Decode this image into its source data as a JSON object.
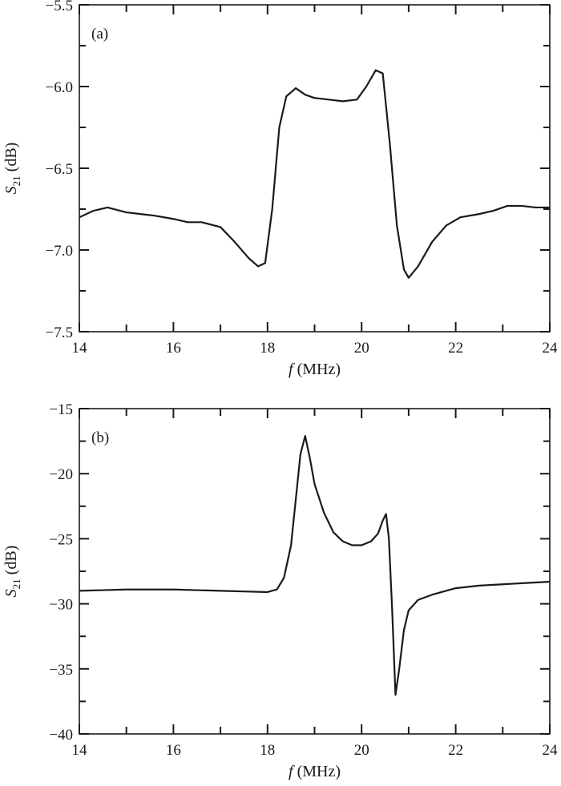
{
  "chart_data": [
    {
      "type": "line",
      "panel_label": "(a)",
      "xlabel_var": "f",
      "xlabel_unit": " (MHz)",
      "ylabel_var": "S",
      "ylabel_sub": "21",
      "ylabel_unit": " (dB)",
      "xlim": [
        14,
        24
      ],
      "ylim": [
        -7.5,
        -5.5
      ],
      "x_ticks": [
        14,
        16,
        18,
        20,
        22,
        24
      ],
      "x_tick_labels": [
        "14",
        "16",
        "18",
        "20",
        "22",
        "24"
      ],
      "y_ticks": [
        -7.5,
        -7.0,
        -6.5,
        -6.0,
        -5.5
      ],
      "y_tick_labels": [
        "−7.5",
        "−7.0",
        "−6.5",
        "−6.0",
        "−5.5"
      ],
      "grid": false,
      "series": [
        {
          "x": [
            14.0,
            14.3,
            14.6,
            15.0,
            15.3,
            15.6,
            16.0,
            16.3,
            16.6,
            17.0,
            17.3,
            17.6,
            17.8,
            17.95,
            18.1,
            18.25,
            18.4,
            18.6,
            18.8,
            19.0,
            19.3,
            19.6,
            19.9,
            20.1,
            20.3,
            20.45,
            20.6,
            20.75,
            20.9,
            21.0,
            21.2,
            21.5,
            21.8,
            22.1,
            22.5,
            22.8,
            23.1,
            23.4,
            23.7,
            24.0
          ],
          "y": [
            -6.8,
            -6.76,
            -6.74,
            -6.77,
            -6.78,
            -6.79,
            -6.81,
            -6.83,
            -6.83,
            -6.86,
            -6.95,
            -7.05,
            -7.1,
            -7.08,
            -6.75,
            -6.25,
            -6.06,
            -6.01,
            -6.05,
            -6.07,
            -6.08,
            -6.09,
            -6.08,
            -6.0,
            -5.9,
            -5.92,
            -6.35,
            -6.85,
            -7.12,
            -7.17,
            -7.1,
            -6.95,
            -6.85,
            -6.8,
            -6.78,
            -6.76,
            -6.73,
            -6.73,
            -6.74,
            -6.74
          ]
        }
      ]
    },
    {
      "type": "line",
      "panel_label": "(b)",
      "xlabel_var": "f",
      "xlabel_unit": " (MHz)",
      "ylabel_var": "S",
      "ylabel_sub": "21",
      "ylabel_unit": " (dB)",
      "xlim": [
        14,
        24
      ],
      "ylim": [
        -40,
        -15
      ],
      "x_ticks": [
        14,
        16,
        18,
        20,
        22,
        24
      ],
      "x_tick_labels": [
        "14",
        "16",
        "18",
        "20",
        "22",
        "24"
      ],
      "y_ticks": [
        -40,
        -35,
        -30,
        -25,
        -20,
        -15
      ],
      "y_tick_labels": [
        "−40",
        "−35",
        "−30",
        "−25",
        "−20",
        "−15"
      ],
      "grid": false,
      "series": [
        {
          "x": [
            14.0,
            14.5,
            15.0,
            15.5,
            16.0,
            16.5,
            17.0,
            17.5,
            18.0,
            18.2,
            18.35,
            18.5,
            18.6,
            18.7,
            18.8,
            18.9,
            19.0,
            19.2,
            19.4,
            19.6,
            19.8,
            20.0,
            20.2,
            20.35,
            20.45,
            20.52,
            20.58,
            20.65,
            20.72,
            20.8,
            20.9,
            21.0,
            21.2,
            21.5,
            21.8,
            22.0,
            22.5,
            23.0,
            23.5,
            24.0
          ],
          "y": [
            -29.0,
            -28.95,
            -28.9,
            -28.9,
            -28.9,
            -28.95,
            -29.0,
            -29.05,
            -29.1,
            -28.9,
            -28.0,
            -25.5,
            -22.0,
            -18.5,
            -17.1,
            -18.8,
            -20.8,
            -23.0,
            -24.5,
            -25.2,
            -25.5,
            -25.5,
            -25.2,
            -24.6,
            -23.6,
            -23.1,
            -25.0,
            -30.5,
            -37.0,
            -35.0,
            -32.0,
            -30.5,
            -29.7,
            -29.3,
            -29.0,
            -28.8,
            -28.6,
            -28.5,
            -28.4,
            -28.3
          ]
        }
      ]
    }
  ]
}
